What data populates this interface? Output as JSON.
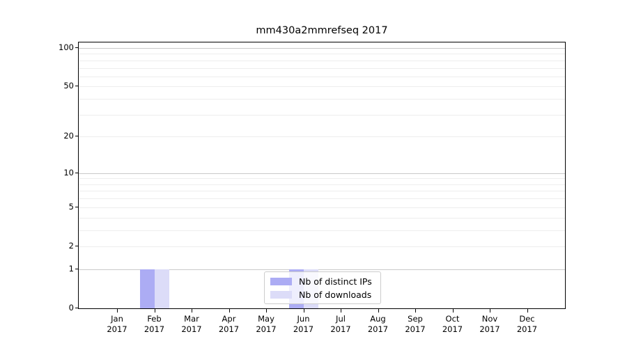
{
  "title": "mm430a2mmrefseq 2017",
  "chart_data": {
    "type": "bar",
    "title": "mm430a2mmrefseq 2017",
    "categories": [
      "Jan",
      "Feb",
      "Mar",
      "Apr",
      "May",
      "Jun",
      "Jul",
      "Aug",
      "Sep",
      "Oct",
      "Nov",
      "Dec"
    ],
    "category_year": "2017",
    "series": [
      {
        "name": "Nb of distinct IPs",
        "color": "#acacf4",
        "values": [
          0,
          1,
          0,
          0,
          0,
          1,
          0,
          0,
          0,
          0,
          0,
          0
        ]
      },
      {
        "name": "Nb of downloads",
        "color": "#dcdcf8",
        "values": [
          0,
          1,
          0,
          0,
          0,
          1,
          0,
          0,
          0,
          0,
          0,
          0
        ]
      }
    ],
    "xlabel": "",
    "ylabel": "",
    "y_axis": {
      "scale": "log10(1+y)",
      "tick_labels": [
        0,
        1,
        2,
        5,
        10,
        20,
        50,
        100
      ],
      "major_gridlines": [
        1,
        10,
        100
      ],
      "minor_gridlines": [
        2,
        3,
        4,
        5,
        6,
        7,
        8,
        9,
        20,
        30,
        40,
        50,
        60,
        70,
        80,
        90
      ],
      "range": [
        0,
        100
      ]
    },
    "legend": {
      "position": "lower-center-inside",
      "entries": [
        "Nb of distinct IPs",
        "Nb of downloads"
      ]
    },
    "colors": {
      "major_grid": "#c9c9c9",
      "minor_grid": "#ededed",
      "spine": "#000000",
      "legend_border": "#cccccc",
      "background": "#ffffff"
    }
  }
}
